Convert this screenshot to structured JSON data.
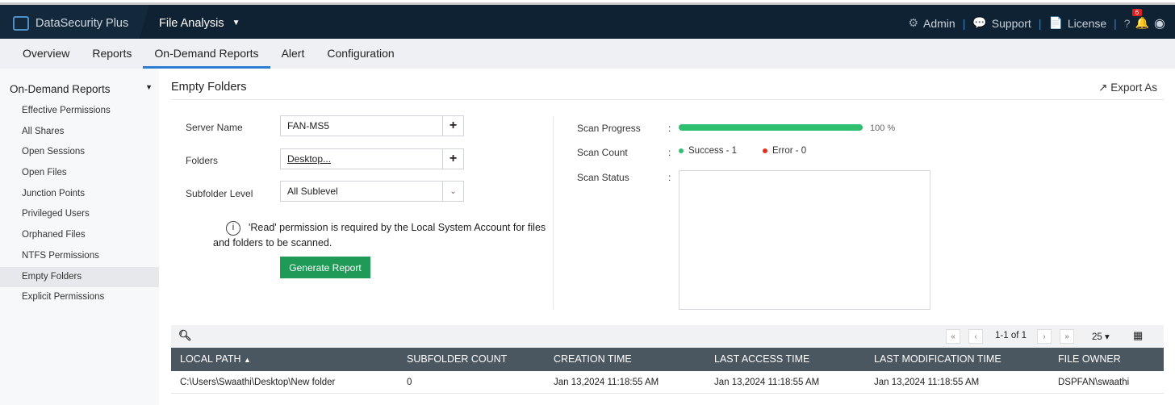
{
  "header": {
    "product": "DataSecurity Plus",
    "module": "File Analysis",
    "links": [
      "Admin",
      "Support",
      "License"
    ],
    "help": "?",
    "notification_count": "6"
  },
  "nav": {
    "tabs": [
      "Overview",
      "Reports",
      "On-Demand Reports",
      "Alert",
      "Configuration"
    ],
    "active": "On-Demand Reports"
  },
  "sidebar": {
    "heading": "On-Demand Reports",
    "items": [
      "Effective Permissions",
      "All Shares",
      "Open Sessions",
      "Open Files",
      "Junction Points",
      "Privileged Users",
      "Orphaned Files",
      "NTFS Permissions",
      "Empty Folders",
      "Explicit Permissions"
    ],
    "active": "Empty Folders"
  },
  "page": {
    "title": "Empty Folders",
    "export_label": "Export As"
  },
  "form": {
    "server_label": "Server Name",
    "server_value": "FAN-MS5",
    "folders_label": "Folders",
    "folders_value": "Desktop...",
    "subfolder_label": "Subfolder Level",
    "subfolder_value": "All Sublevel",
    "note": "'Read' permission is required by the Local System Account for files and folders to be scanned.",
    "generate_label": "Generate Report"
  },
  "scan": {
    "progress_label": "Scan Progress",
    "progress_percent": 100,
    "progress_text": "100 %",
    "count_label": "Scan Count",
    "success": "Success - 1",
    "error": "Error - 0",
    "status_label": "Scan Status",
    "colon": ":",
    "colors": {
      "success": "#2fbf71",
      "error": "#e0301e"
    }
  },
  "table": {
    "pagination": "1-1 of 1",
    "page_size": "25",
    "columns": [
      "LOCAL PATH",
      "SUBFOLDER COUNT",
      "CREATION TIME",
      "LAST ACCESS TIME",
      "LAST MODIFICATION TIME",
      "FILE OWNER"
    ],
    "sort": "LOCAL PATH ascending",
    "rows": [
      [
        "C:\\Users\\Swaathi\\Desktop\\New folder",
        "0",
        "Jan 13,2024 11:18:55 AM",
        "Jan 13,2024 11:18:55 AM",
        "Jan 13,2024 11:18:55 AM",
        "DSPFAN\\swaathi"
      ]
    ]
  }
}
